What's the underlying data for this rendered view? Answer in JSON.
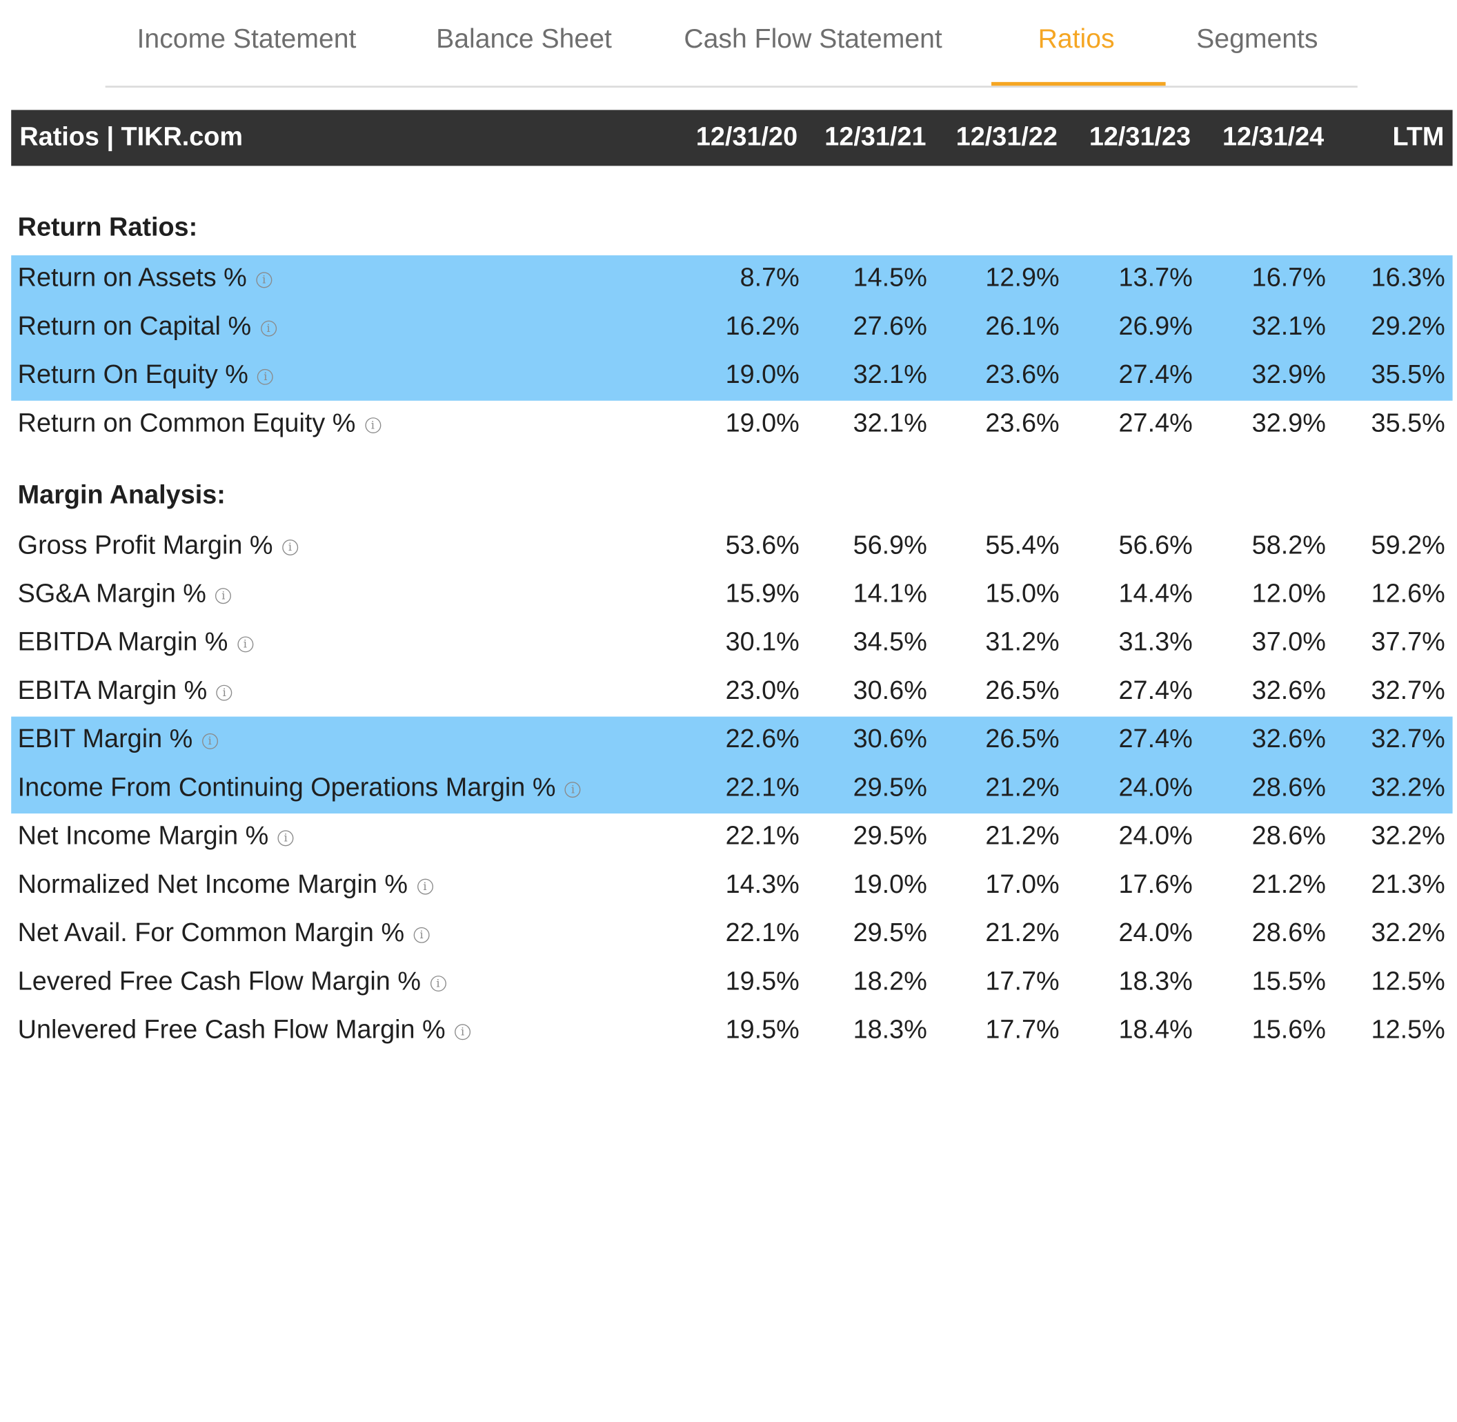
{
  "tabs": [
    {
      "label": "Income Statement"
    },
    {
      "label": "Balance Sheet"
    },
    {
      "label": "Cash Flow Statement"
    },
    {
      "label": "Ratios"
    },
    {
      "label": "Segments"
    }
  ],
  "active_tab": "Ratios",
  "colors": {
    "accent": "#f5a623",
    "highlight": "#87cefa",
    "header_bg": "#333333"
  },
  "table": {
    "title": "Ratios | TIKR.com",
    "columns": [
      "12/31/20",
      "12/31/21",
      "12/31/22",
      "12/31/23",
      "12/31/24",
      "LTM"
    ],
    "sections": [
      {
        "heading": "Return Ratios:",
        "rows": [
          {
            "label": "Return on Assets %",
            "values": [
              "8.7%",
              "14.5%",
              "12.9%",
              "13.7%",
              "16.7%",
              "16.3%"
            ],
            "highlighted": true
          },
          {
            "label": "Return on Capital %",
            "values": [
              "16.2%",
              "27.6%",
              "26.1%",
              "26.9%",
              "32.1%",
              "29.2%"
            ],
            "highlighted": true
          },
          {
            "label": "Return On Equity %",
            "values": [
              "19.0%",
              "32.1%",
              "23.6%",
              "27.4%",
              "32.9%",
              "35.5%"
            ],
            "highlighted": true
          },
          {
            "label": "Return on Common Equity %",
            "values": [
              "19.0%",
              "32.1%",
              "23.6%",
              "27.4%",
              "32.9%",
              "35.5%"
            ],
            "highlighted": false
          }
        ]
      },
      {
        "heading": "Margin Analysis:",
        "rows": [
          {
            "label": "Gross Profit Margin %",
            "values": [
              "53.6%",
              "56.9%",
              "55.4%",
              "56.6%",
              "58.2%",
              "59.2%"
            ],
            "highlighted": false
          },
          {
            "label": "SG&A Margin %",
            "values": [
              "15.9%",
              "14.1%",
              "15.0%",
              "14.4%",
              "12.0%",
              "12.6%"
            ],
            "highlighted": false
          },
          {
            "label": "EBITDA Margin %",
            "values": [
              "30.1%",
              "34.5%",
              "31.2%",
              "31.3%",
              "37.0%",
              "37.7%"
            ],
            "highlighted": false
          },
          {
            "label": "EBITA Margin %",
            "values": [
              "23.0%",
              "30.6%",
              "26.5%",
              "27.4%",
              "32.6%",
              "32.7%"
            ],
            "highlighted": false
          },
          {
            "label": "EBIT Margin %",
            "values": [
              "22.6%",
              "30.6%",
              "26.5%",
              "27.4%",
              "32.6%",
              "32.7%"
            ],
            "highlighted": true
          },
          {
            "label": "Income From Continuing Operations Margin %",
            "values": [
              "22.1%",
              "29.5%",
              "21.2%",
              "24.0%",
              "28.6%",
              "32.2%"
            ],
            "highlighted": true
          },
          {
            "label": "Net Income Margin %",
            "values": [
              "22.1%",
              "29.5%",
              "21.2%",
              "24.0%",
              "28.6%",
              "32.2%"
            ],
            "highlighted": false
          },
          {
            "label": "Normalized Net Income Margin %",
            "values": [
              "14.3%",
              "19.0%",
              "17.0%",
              "17.6%",
              "21.2%",
              "21.3%"
            ],
            "highlighted": false
          },
          {
            "label": "Net Avail. For Common Margin %",
            "values": [
              "22.1%",
              "29.5%",
              "21.2%",
              "24.0%",
              "28.6%",
              "32.2%"
            ],
            "highlighted": false
          },
          {
            "label": "Levered Free Cash Flow Margin %",
            "values": [
              "19.5%",
              "18.2%",
              "17.7%",
              "18.3%",
              "15.5%",
              "12.5%"
            ],
            "highlighted": false
          },
          {
            "label": "Unlevered Free Cash Flow Margin %",
            "values": [
              "19.5%",
              "18.3%",
              "17.7%",
              "18.4%",
              "15.6%",
              "12.5%"
            ],
            "highlighted": false
          }
        ]
      }
    ]
  }
}
